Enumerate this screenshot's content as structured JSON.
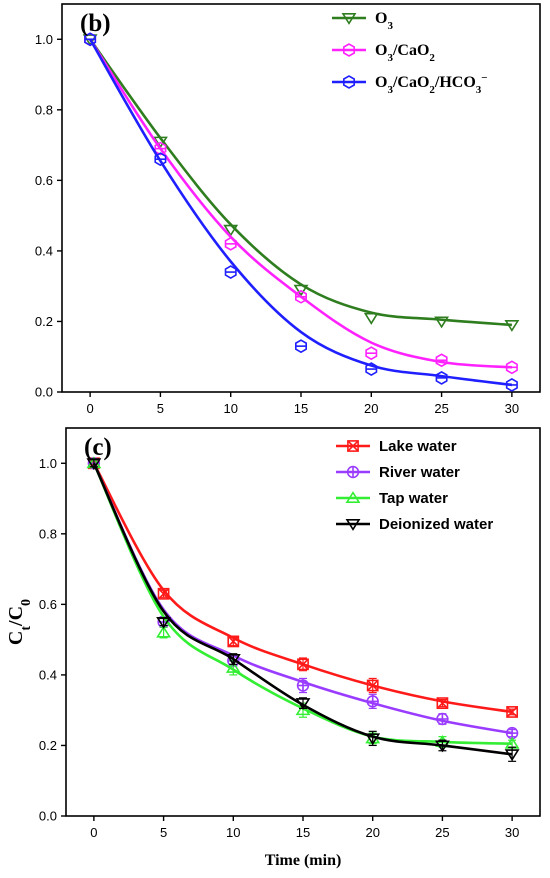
{
  "chart_data": [
    {
      "type": "line",
      "panel_label": "(b)",
      "x": [
        0,
        5,
        10,
        15,
        20,
        25,
        30
      ],
      "xlim": [
        -2,
        32
      ],
      "ylim": [
        0,
        1.1
      ],
      "xticks": [
        "0",
        "5",
        "10",
        "15",
        "20",
        "25",
        "30"
      ],
      "yticks": [
        "0.0",
        "0.2",
        "0.4",
        "0.6",
        "0.8",
        "1.0"
      ],
      "xlabel": "",
      "ylabel": "",
      "legend_position": "top-right",
      "series": [
        {
          "name_parts": [
            [
              "O",
              ""
            ],
            [
              "3",
              "sub"
            ]
          ],
          "color": "#2e7d1e",
          "marker": "triangle-down",
          "values": [
            1.0,
            0.71,
            0.46,
            0.29,
            0.21,
            0.2,
            0.19
          ],
          "curve": [
            1.0,
            0.72,
            0.475,
            0.305,
            0.225,
            0.205,
            0.19
          ]
        },
        {
          "name_parts": [
            [
              "O",
              ""
            ],
            [
              "3",
              "sub"
            ],
            [
              "/CaO",
              ""
            ],
            [
              "2",
              "sub"
            ]
          ],
          "color": "#ff22ff",
          "marker": "hexagon",
          "values": [
            1.0,
            0.69,
            0.42,
            0.27,
            0.11,
            0.09,
            0.07
          ],
          "curve": [
            1.0,
            0.69,
            0.44,
            0.27,
            0.14,
            0.085,
            0.07
          ]
        },
        {
          "name_parts": [
            [
              "O",
              ""
            ],
            [
              "3",
              "sub"
            ],
            [
              "/CaO",
              ""
            ],
            [
              "2",
              "sub"
            ],
            [
              "/HCO",
              ""
            ],
            [
              "3",
              "sub"
            ],
            [
              "−",
              "sup"
            ]
          ],
          "color": "#1f1fff",
          "marker": "hexagon",
          "values": [
            1.0,
            0.66,
            0.34,
            0.13,
            0.065,
            0.04,
            0.02
          ],
          "curve": [
            1.0,
            0.655,
            0.37,
            0.17,
            0.075,
            0.045,
            0.02
          ]
        }
      ]
    },
    {
      "type": "line",
      "panel_label": "(c)",
      "x": [
        0,
        5,
        10,
        15,
        20,
        25,
        30
      ],
      "xlim": [
        -2,
        32
      ],
      "ylim": [
        0,
        1.1
      ],
      "xticks": [
        "0",
        "5",
        "10",
        "15",
        "20",
        "25",
        "30"
      ],
      "yticks": [
        "0.0",
        "0.2",
        "0.4",
        "0.6",
        "0.8",
        "1.0"
      ],
      "xlabel": "Time (min)",
      "ylabel_parts": [
        [
          "C",
          ""
        ],
        [
          "t",
          "sub"
        ],
        [
          "/C",
          ""
        ],
        [
          "0",
          "sub"
        ]
      ],
      "legend_position": "top-right",
      "series": [
        {
          "name": "Lake water",
          "color": "#ff1a1a",
          "marker": "square-x",
          "values": [
            1.0,
            0.63,
            0.495,
            0.43,
            0.37,
            0.32,
            0.295
          ],
          "errors": [
            0.01,
            0.01,
            0.012,
            0.018,
            0.02,
            0.01,
            0.008
          ],
          "curve": [
            1.0,
            0.64,
            0.505,
            0.43,
            0.37,
            0.325,
            0.295
          ]
        },
        {
          "name": "River water",
          "color": "#9a3cff",
          "marker": "circle-plus",
          "values": [
            1.0,
            0.55,
            0.44,
            0.37,
            0.325,
            0.275,
            0.235
          ],
          "errors": [
            0.01,
            0.015,
            0.015,
            0.02,
            0.02,
            0.015,
            0.01
          ],
          "curve": [
            1.0,
            0.585,
            0.455,
            0.38,
            0.32,
            0.27,
            0.235
          ]
        },
        {
          "name": "Tap water",
          "color": "#33ee33",
          "marker": "triangle-up",
          "values": [
            1.0,
            0.52,
            0.42,
            0.3,
            0.22,
            0.21,
            0.205
          ],
          "errors": [
            0.01,
            0.015,
            0.02,
            0.02,
            0.015,
            0.015,
            0.01
          ],
          "curve": [
            1.0,
            0.565,
            0.415,
            0.305,
            0.225,
            0.21,
            0.205
          ]
        },
        {
          "name": "Deionized water",
          "color": "#000000",
          "marker": "triangle-down",
          "values": [
            1.0,
            0.55,
            0.445,
            0.32,
            0.22,
            0.2,
            0.175
          ],
          "errors": [
            0.01,
            0.01,
            0.015,
            0.015,
            0.02,
            0.015,
            0.02
          ],
          "curve": [
            1.0,
            0.58,
            0.445,
            0.315,
            0.225,
            0.2,
            0.175
          ]
        }
      ]
    }
  ]
}
